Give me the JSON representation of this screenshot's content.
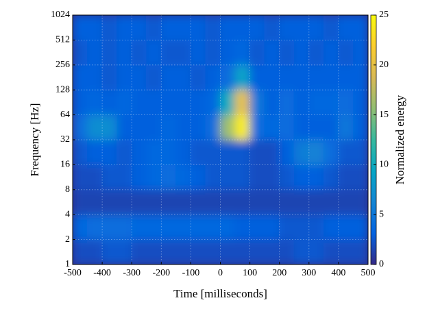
{
  "chart_data": {
    "type": "heatmap",
    "xlabel": "Time [milliseconds]",
    "ylabel": "Frequency [Hz]",
    "colorbar_label": "Normalized energy",
    "xlim": [
      -500,
      500
    ],
    "xticks": [
      -500,
      -400,
      -300,
      -200,
      -100,
      0,
      100,
      200,
      300,
      400,
      500
    ],
    "ylim": [
      1,
      1024
    ],
    "ylog": true,
    "yticks": [
      1,
      2,
      4,
      8,
      16,
      32,
      64,
      128,
      256,
      512,
      1024
    ],
    "grid": true,
    "xbins": [
      -500,
      -450,
      -400,
      -350,
      -300,
      -250,
      -200,
      -150,
      -100,
      -50,
      0,
      50,
      100,
      150,
      200,
      250,
      300,
      350,
      400,
      450,
      500
    ],
    "ybins": [
      1,
      2,
      4,
      8,
      16,
      32,
      64,
      128,
      256,
      512,
      1024
    ],
    "z": [
      [
        2,
        2,
        2.5,
        2.5,
        2,
        2,
        2,
        2,
        2,
        2,
        2,
        2,
        2,
        2,
        2,
        2.5,
        2.5,
        2,
        2,
        2
      ],
      [
        3.5,
        4,
        4,
        4,
        3.5,
        3.5,
        3.5,
        3.5,
        3.5,
        3.5,
        3.5,
        3,
        3,
        3,
        2.5,
        2.5,
        2.5,
        3,
        3,
        3
      ],
      [
        1.5,
        1.5,
        1.5,
        1.5,
        1.5,
        1.5,
        1.5,
        1.5,
        1.5,
        1.5,
        1.5,
        1.5,
        1.5,
        1.5,
        1.5,
        1.5,
        1.5,
        1.5,
        1.5,
        1.5
      ],
      [
        2,
        2,
        2.5,
        2.5,
        3,
        3.5,
        4,
        3.5,
        3,
        2.5,
        2.5,
        2.5,
        2,
        2,
        2.5,
        3,
        3,
        2.5,
        2,
        2
      ],
      [
        2.5,
        3,
        3,
        2.5,
        3,
        3.5,
        3.5,
        3,
        2.5,
        2.5,
        2.5,
        2.5,
        2,
        2,
        3,
        5.5,
        6,
        4,
        2.5,
        2.5
      ],
      [
        4,
        7,
        7,
        3,
        3,
        3,
        3.5,
        3,
        3,
        4,
        16,
        24,
        4,
        3.5,
        4,
        3,
        3,
        3,
        5,
        3
      ],
      [
        3,
        3.5,
        3,
        3.5,
        3,
        3,
        3,
        3,
        3,
        3.5,
        10,
        20,
        5,
        3,
        4,
        3,
        3.5,
        3.5,
        4,
        3
      ],
      [
        3,
        3,
        2.5,
        3,
        3,
        2.5,
        3,
        3,
        2.5,
        3,
        4,
        9,
        3,
        3,
        3,
        3,
        3,
        3,
        3,
        3
      ],
      [
        2.5,
        3,
        2.5,
        3,
        2.5,
        3,
        2.5,
        2.5,
        3,
        2.5,
        3,
        3.5,
        2.5,
        3,
        2.5,
        3,
        2.5,
        3,
        2.5,
        3
      ],
      [
        3,
        3,
        2.5,
        3,
        3,
        2.5,
        3,
        3,
        3,
        2.5,
        3,
        3,
        3,
        2.5,
        3,
        3,
        3,
        2.5,
        3,
        3
      ]
    ],
    "zlim": [
      0,
      25
    ],
    "zticks": [
      0,
      5,
      10,
      15,
      20,
      25
    ],
    "colormap": [
      "#352a87",
      "#0363e1",
      "#1485d4",
      "#06a7c6",
      "#38b99e",
      "#92bf73",
      "#d9ba56",
      "#fcce2e",
      "#f9fb0e"
    ]
  }
}
